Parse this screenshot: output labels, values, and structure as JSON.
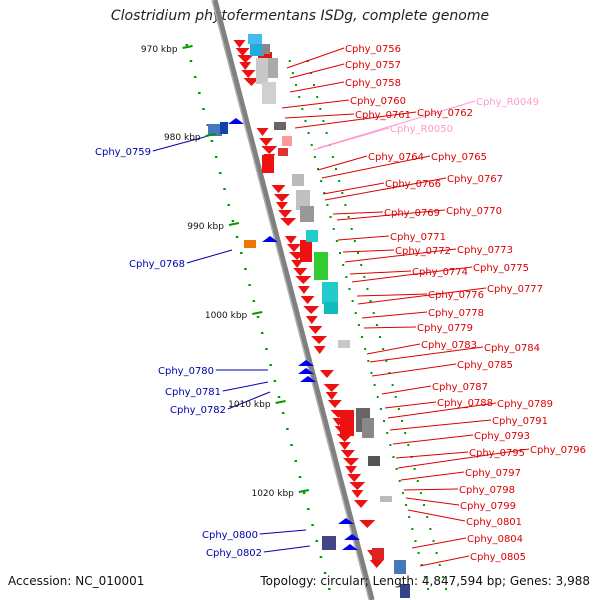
{
  "title": "Clostridium phytofermentans ISDg, complete genome",
  "footer": {
    "accession": "Accession: NC_010001",
    "summary": "Topology: circular; Length: 4,847,594 bp; Genes: 3,988"
  },
  "scale_ticks": [
    {
      "label": "970 kbp"
    },
    {
      "label": "980 kbp"
    },
    {
      "label": "990 kbp"
    },
    {
      "label": "1000 kbp"
    },
    {
      "label": "1010 kbp"
    },
    {
      "label": "1020 kbp"
    }
  ],
  "right_labels": [
    {
      "text": "Cphy_0756",
      "color": "#dd0000"
    },
    {
      "text": "Cphy_0757",
      "color": "#dd0000"
    },
    {
      "text": "Cphy_0758",
      "color": "#dd0000"
    },
    {
      "text": "Cphy_0760",
      "color": "#dd0000"
    },
    {
      "text": "Cphy_0761",
      "color": "#dd0000"
    },
    {
      "text": "Cphy_0762",
      "color": "#dd0000"
    },
    {
      "text": "Cphy_R0049",
      "color": "#ff99cc"
    },
    {
      "text": "Cphy_R0050",
      "color": "#ff99cc"
    },
    {
      "text": "Cphy_0764",
      "color": "#dd0000"
    },
    {
      "text": "Cphy_0765",
      "color": "#dd0000"
    },
    {
      "text": "Cphy_0766",
      "color": "#dd0000"
    },
    {
      "text": "Cphy_0767",
      "color": "#dd0000"
    },
    {
      "text": "Cphy_0769",
      "color": "#dd0000"
    },
    {
      "text": "Cphy_0770",
      "color": "#dd0000"
    },
    {
      "text": "Cphy_0771",
      "color": "#dd0000"
    },
    {
      "text": "Cphy_0772",
      "color": "#dd0000"
    },
    {
      "text": "Cphy_0773",
      "color": "#dd0000"
    },
    {
      "text": "Cphy_0774",
      "color": "#dd0000"
    },
    {
      "text": "Cphy_0775",
      "color": "#dd0000"
    },
    {
      "text": "Cphy_0776",
      "color": "#dd0000"
    },
    {
      "text": "Cphy_0777",
      "color": "#dd0000"
    },
    {
      "text": "Cphy_0778",
      "color": "#dd0000"
    },
    {
      "text": "Cphy_0779",
      "color": "#dd0000"
    },
    {
      "text": "Cphy_0783",
      "color": "#dd0000"
    },
    {
      "text": "Cphy_0784",
      "color": "#dd0000"
    },
    {
      "text": "Cphy_0785",
      "color": "#dd0000"
    },
    {
      "text": "Cphy_0787",
      "color": "#dd0000"
    },
    {
      "text": "Cphy_0788",
      "color": "#dd0000"
    },
    {
      "text": "Cphy_0789",
      "color": "#dd0000"
    },
    {
      "text": "Cphy_0791",
      "color": "#dd0000"
    },
    {
      "text": "Cphy_0793",
      "color": "#dd0000"
    },
    {
      "text": "Cphy_0795",
      "color": "#dd0000"
    },
    {
      "text": "Cphy_0796",
      "color": "#dd0000"
    },
    {
      "text": "Cphy_0797",
      "color": "#dd0000"
    },
    {
      "text": "Cphy_0798",
      "color": "#dd0000"
    },
    {
      "text": "Cphy_0799",
      "color": "#dd0000"
    },
    {
      "text": "Cphy_0801",
      "color": "#dd0000"
    },
    {
      "text": "Cphy_0804",
      "color": "#dd0000"
    },
    {
      "text": "Cphy_0805",
      "color": "#dd0000"
    }
  ],
  "left_labels": [
    {
      "text": "Cphy_0759",
      "color": "#0000aa"
    },
    {
      "text": "Cphy_0768",
      "color": "#0000aa"
    },
    {
      "text": "Cphy_0780",
      "color": "#0000aa"
    },
    {
      "text": "Cphy_0781",
      "color": "#0000aa"
    },
    {
      "text": "Cphy_0782",
      "color": "#0000aa"
    },
    {
      "text": "Cphy_0800",
      "color": "#0000aa"
    },
    {
      "text": "Cphy_0802",
      "color": "#0000aa"
    }
  ],
  "colors": {
    "forward_cds": "#ee1111",
    "reverse_cds": "#0000ee",
    "backbone": "#808080",
    "tick": "#009900",
    "rrna": "#ff99cc"
  }
}
